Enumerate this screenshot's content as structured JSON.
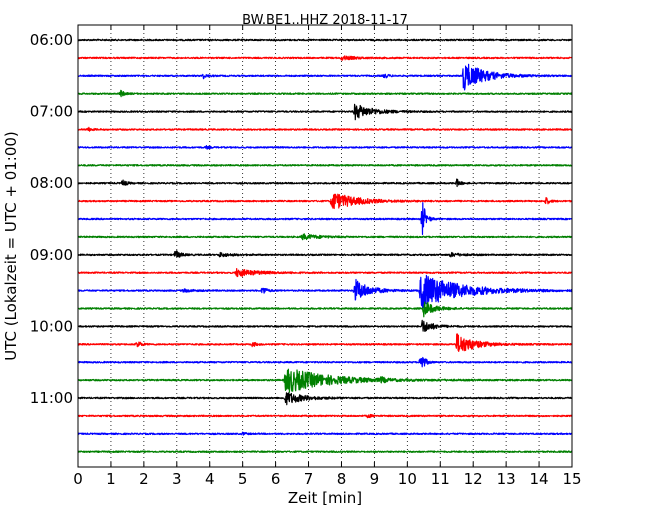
{
  "chart_data": {
    "type": "line",
    "title": "BW.BE1..HHZ 2018-11-17",
    "xlabel": "Zeit  [min]",
    "ylabel": "UTC (Lokalzeit = UTC + 01:00)",
    "xlim": [
      0,
      15
    ],
    "x_ticks": [
      "0",
      "1",
      "2",
      "3",
      "4",
      "5",
      "6",
      "7",
      "8",
      "9",
      "10",
      "11",
      "12",
      "13",
      "14",
      "15"
    ],
    "y_ticks": [
      {
        "label": "06:00",
        "trace": 0
      },
      {
        "label": "07:00",
        "trace": 4
      },
      {
        "label": "08:00",
        "trace": 8
      },
      {
        "label": "09:00",
        "trace": 12
      },
      {
        "label": "10:00",
        "trace": 16
      },
      {
        "label": "11:00",
        "trace": 20
      }
    ],
    "grid": "vertical dotted",
    "trace_interval_min": 15,
    "trace_colors": [
      "#000000",
      "#ff0000",
      "#0000ff",
      "#008000"
    ],
    "traces": [
      {
        "start": "06:00",
        "events": []
      },
      {
        "start": "06:15",
        "events": [
          {
            "t": 8.0,
            "amp": 0.15,
            "dur": 0.4
          }
        ]
      },
      {
        "start": "06:30",
        "events": [
          {
            "t": 11.7,
            "amp": 1.1,
            "dur": 0.6
          },
          {
            "t": 3.8,
            "amp": 0.2,
            "dur": 0.1
          },
          {
            "t": 9.3,
            "amp": 0.2,
            "dur": 0.1
          }
        ]
      },
      {
        "start": "06:45",
        "events": [
          {
            "t": 1.3,
            "amp": 0.25,
            "dur": 0.1
          }
        ]
      },
      {
        "start": "07:00",
        "events": [
          {
            "t": 8.4,
            "amp": 0.6,
            "dur": 0.5
          }
        ]
      },
      {
        "start": "07:15",
        "events": [
          {
            "t": 0.3,
            "amp": 0.15,
            "dur": 0.1
          }
        ]
      },
      {
        "start": "07:30",
        "events": [
          {
            "t": 3.9,
            "amp": 0.1,
            "dur": 0.1
          }
        ]
      },
      {
        "start": "07:45",
        "events": []
      },
      {
        "start": "08:00",
        "events": [
          {
            "t": 1.35,
            "amp": 0.3,
            "dur": 0.1
          },
          {
            "t": 11.5,
            "amp": 0.3,
            "dur": 0.1
          }
        ]
      },
      {
        "start": "08:15",
        "events": [
          {
            "t": 7.7,
            "amp": 0.7,
            "dur": 0.7
          },
          {
            "t": 14.2,
            "amp": 0.3,
            "dur": 0.1
          }
        ]
      },
      {
        "start": "08:30",
        "events": [
          {
            "t": 10.45,
            "amp": 1.5,
            "dur": 0.1
          }
        ]
      },
      {
        "start": "08:45",
        "events": [
          {
            "t": 6.8,
            "amp": 0.2,
            "dur": 0.5
          }
        ]
      },
      {
        "start": "09:00",
        "events": [
          {
            "t": 2.95,
            "amp": 0.35,
            "dur": 0.15
          },
          {
            "t": 4.3,
            "amp": 0.15,
            "dur": 0.3
          },
          {
            "t": 11.3,
            "amp": 0.15,
            "dur": 0.3
          }
        ]
      },
      {
        "start": "09:15",
        "events": [
          {
            "t": 4.8,
            "amp": 0.3,
            "dur": 0.6
          }
        ]
      },
      {
        "start": "09:30",
        "events": [
          {
            "t": 10.4,
            "amp": 1.4,
            "dur": 1.1
          },
          {
            "t": 8.4,
            "amp": 0.9,
            "dur": 0.4
          },
          {
            "t": 5.6,
            "amp": 0.4,
            "dur": 0.1
          },
          {
            "t": 3.2,
            "amp": 0.1,
            "dur": 0.3
          }
        ]
      },
      {
        "start": "09:45",
        "events": [
          {
            "t": 10.5,
            "amp": 0.6,
            "dur": 0.3
          }
        ]
      },
      {
        "start": "10:00",
        "events": [
          {
            "t": 10.45,
            "amp": 0.5,
            "dur": 0.3
          }
        ]
      },
      {
        "start": "10:15",
        "events": [
          {
            "t": 11.5,
            "amp": 0.8,
            "dur": 0.5
          },
          {
            "t": 1.8,
            "amp": 0.3,
            "dur": 0.1
          },
          {
            "t": 5.3,
            "amp": 0.2,
            "dur": 0.1
          }
        ]
      },
      {
        "start": "10:30",
        "events": [
          {
            "t": 10.4,
            "amp": 1.0,
            "dur": 0.1
          }
        ]
      },
      {
        "start": "10:45",
        "events": [
          {
            "t": 6.3,
            "amp": 1.0,
            "dur": 1.2
          },
          {
            "t": 9.2,
            "amp": 0.2,
            "dur": 0.1
          }
        ]
      },
      {
        "start": "11:00",
        "events": [
          {
            "t": 6.3,
            "amp": 0.5,
            "dur": 0.5
          }
        ]
      },
      {
        "start": "11:15",
        "events": [
          {
            "t": 8.8,
            "amp": 0.15,
            "dur": 0.1
          }
        ]
      },
      {
        "start": "11:30",
        "events": [
          {
            "t": 5.0,
            "amp": 0.1,
            "dur": 0.1
          }
        ]
      },
      {
        "start": "11:45",
        "events": []
      }
    ]
  }
}
